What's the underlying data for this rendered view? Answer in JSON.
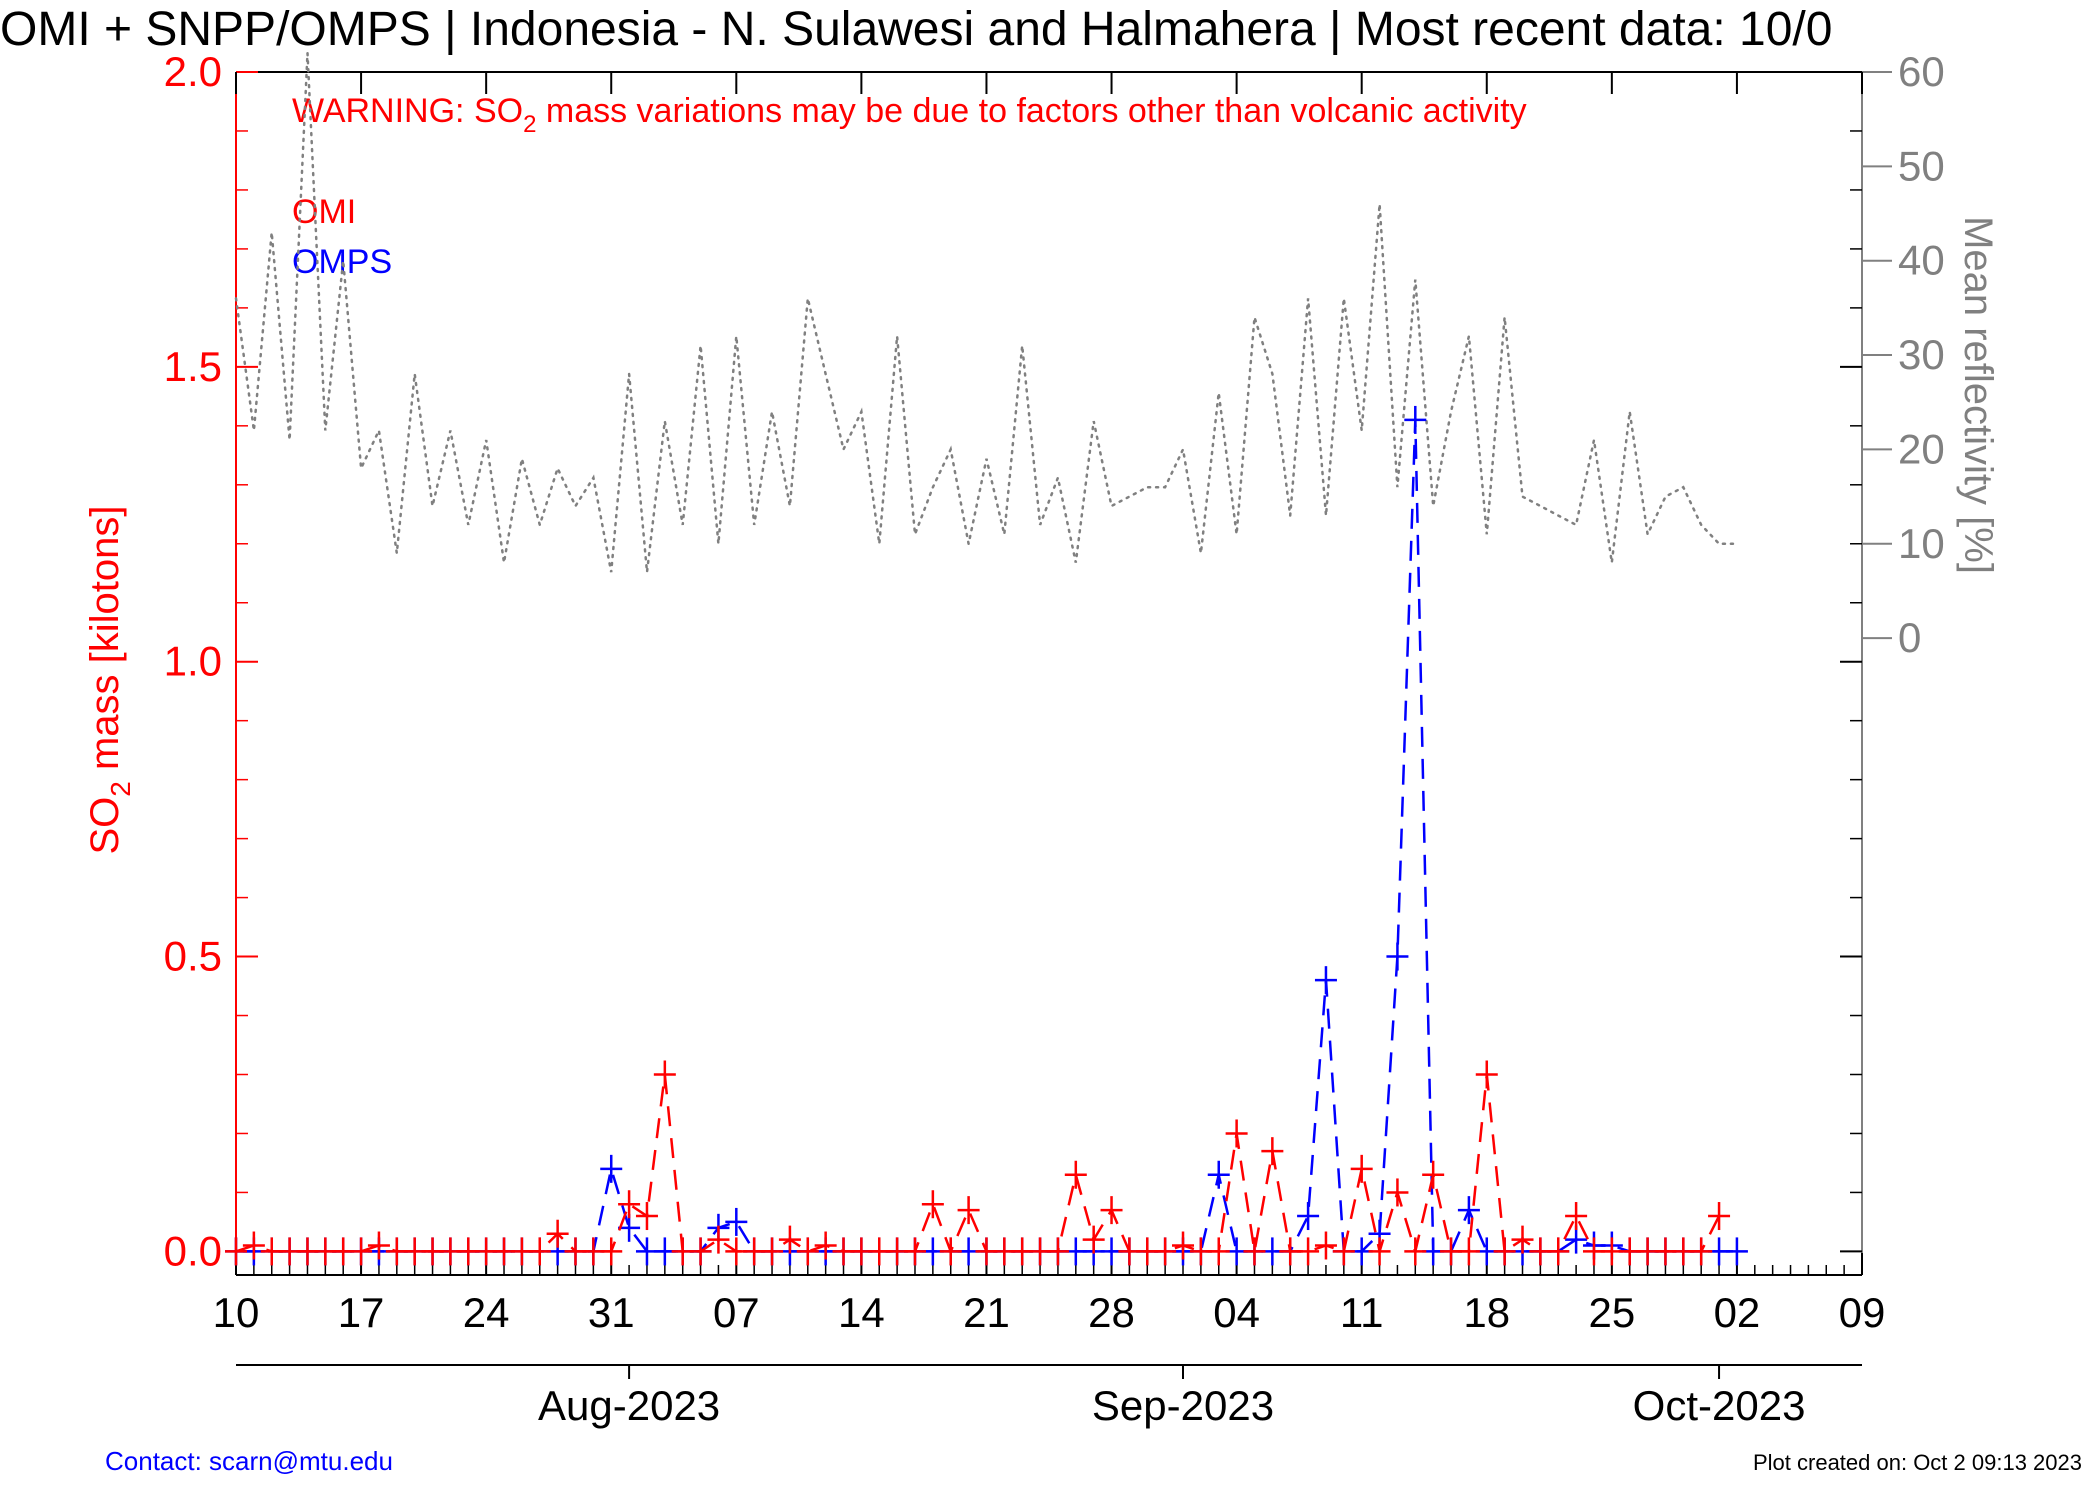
{
  "title": "OMI + SNPP/OMPS | Indonesia - N. Sulawesi and Halmahera | Most recent data: 10/0",
  "warning": {
    "prefix": "WARNING: SO",
    "subscript": "2",
    "suffix": " mass variations may be due to factors other than volcanic activity"
  },
  "footer": {
    "contact": "Contact: scarn@mtu.edu",
    "created": "Plot created on: Oct  2 09:13 2023"
  },
  "colors": {
    "omi": "#ff0000",
    "omps": "#0000ff",
    "reflectivity": "#808080",
    "axis": "#000000"
  },
  "chart_data": {
    "type": "line",
    "left_axis": {
      "label_prefix": "SO",
      "label_subscript": "2",
      "label_suffix": " mass [kilotons]",
      "ylim": [
        -0.04,
        2.0
      ],
      "ticks": [
        0.0,
        0.5,
        1.0,
        1.5,
        2.0
      ],
      "tick_labels": [
        "0.0",
        "0.5",
        "1.0",
        "1.5",
        "2.0"
      ]
    },
    "right_axis": {
      "label": "Mean reflectivity [%]",
      "ticks": [
        0,
        10,
        20,
        30,
        40,
        50,
        60
      ],
      "tick_labels": [
        "0",
        "10",
        "20",
        "30",
        "40",
        "50",
        "60"
      ],
      "ylim": [
        -67.5,
        60
      ]
    },
    "x_axis": {
      "start": "2023-07-10",
      "end": "2023-10-09",
      "ticks": [
        "2023-07-10",
        "2023-07-17",
        "2023-07-24",
        "2023-07-31",
        "2023-08-07",
        "2023-08-14",
        "2023-08-21",
        "2023-08-28",
        "2023-09-04",
        "2023-09-11",
        "2023-09-18",
        "2023-09-25",
        "2023-10-02",
        "2023-10-09"
      ],
      "tick_labels": [
        "10",
        "17",
        "24",
        "31",
        "07",
        "14",
        "21",
        "28",
        "04",
        "11",
        "18",
        "25",
        "02",
        "09"
      ],
      "months": [
        {
          "date": "2023-08-01",
          "label": "Aug-2023"
        },
        {
          "date": "2023-09-01",
          "label": "Sep-2023"
        },
        {
          "date": "2023-10-01",
          "label": "Oct-2023"
        }
      ]
    },
    "series": [
      {
        "name": "OMI",
        "style": "dashed",
        "marker": "plus",
        "x": [
          "2023-07-10",
          "2023-07-11",
          "2023-07-12",
          "2023-07-13",
          "2023-07-14",
          "2023-07-15",
          "2023-07-16",
          "2023-07-17",
          "2023-07-18",
          "2023-07-19",
          "2023-07-20",
          "2023-07-21",
          "2023-07-22",
          "2023-07-23",
          "2023-07-24",
          "2023-07-25",
          "2023-07-26",
          "2023-07-27",
          "2023-07-28",
          "2023-07-29",
          "2023-07-30",
          "2023-07-31",
          "2023-08-01",
          "2023-08-02",
          "2023-08-03",
          "2023-08-04",
          "2023-08-05",
          "2023-08-06",
          "2023-08-07",
          "2023-08-08",
          "2023-08-09",
          "2023-08-10",
          "2023-08-11",
          "2023-08-12",
          "2023-08-13",
          "2023-08-14",
          "2023-08-15",
          "2023-08-16",
          "2023-08-17",
          "2023-08-18",
          "2023-08-19",
          "2023-08-20",
          "2023-08-21",
          "2023-08-22",
          "2023-08-23",
          "2023-08-24",
          "2023-08-25",
          "2023-08-26",
          "2023-08-27",
          "2023-08-28",
          "2023-08-29",
          "2023-08-30",
          "2023-08-31",
          "2023-09-01",
          "2023-09-02",
          "2023-09-03",
          "2023-09-04",
          "2023-09-05",
          "2023-09-06",
          "2023-09-07",
          "2023-09-08",
          "2023-09-09",
          "2023-09-10",
          "2023-09-11",
          "2023-09-12",
          "2023-09-13",
          "2023-09-14",
          "2023-09-15",
          "2023-09-16",
          "2023-09-17",
          "2023-09-18",
          "2023-09-19",
          "2023-09-20",
          "2023-09-21",
          "2023-09-22",
          "2023-09-23",
          "2023-09-24",
          "2023-09-25",
          "2023-09-26",
          "2023-09-27",
          "2023-09-28",
          "2023-09-29",
          "2023-09-30",
          "2023-10-01"
        ],
        "values": [
          0.0,
          0.01,
          0.0,
          0.0,
          0.0,
          0.0,
          0.0,
          0.0,
          0.01,
          0.0,
          0.0,
          0.0,
          0.0,
          0.0,
          0.0,
          0.0,
          0.0,
          0.0,
          0.03,
          0.0,
          0.0,
          0.0,
          0.08,
          0.06,
          0.3,
          0.0,
          0.0,
          0.02,
          0.0,
          0.0,
          0.0,
          0.02,
          0.0,
          0.01,
          0.0,
          0.0,
          0.0,
          0.0,
          0.0,
          0.08,
          0.0,
          0.07,
          0.0,
          0.0,
          0.0,
          0.0,
          0.0,
          0.13,
          0.02,
          0.07,
          0.0,
          0.0,
          0.0,
          0.01,
          0.0,
          0.0,
          0.2,
          0.0,
          0.17,
          0.0,
          0.0,
          0.01,
          0.0,
          0.14,
          0.0,
          0.1,
          0.0,
          0.13,
          0.0,
          0.0,
          0.3,
          0.0,
          0.02,
          0.0,
          0.0,
          0.06,
          0.0,
          0.0,
          0.0,
          0.0,
          0.0,
          0.0,
          0.0,
          0.06
        ]
      },
      {
        "name": "OMPS",
        "style": "dashed",
        "marker": "plus",
        "x": [
          "2023-07-10",
          "2023-07-11",
          "2023-07-12",
          "2023-07-13",
          "2023-07-14",
          "2023-07-15",
          "2023-07-16",
          "2023-07-17",
          "2023-07-18",
          "2023-07-19",
          "2023-07-20",
          "2023-07-21",
          "2023-07-22",
          "2023-07-23",
          "2023-07-24",
          "2023-07-25",
          "2023-07-26",
          "2023-07-27",
          "2023-07-28",
          "2023-07-29",
          "2023-07-30",
          "2023-07-31",
          "2023-08-01",
          "2023-08-02",
          "2023-08-03",
          "2023-08-04",
          "2023-08-05",
          "2023-08-06",
          "2023-08-07",
          "2023-08-08",
          "2023-08-09",
          "2023-08-10",
          "2023-08-11",
          "2023-08-12",
          "2023-08-13",
          "2023-08-14",
          "2023-08-15",
          "2023-08-16",
          "2023-08-17",
          "2023-08-18",
          "2023-08-19",
          "2023-08-20",
          "2023-08-21",
          "2023-08-22",
          "2023-08-23",
          "2023-08-24",
          "2023-08-25",
          "2023-08-26",
          "2023-08-27",
          "2023-08-28",
          "2023-08-29",
          "2023-08-30",
          "2023-08-31",
          "2023-09-01",
          "2023-09-02",
          "2023-09-03",
          "2023-09-04",
          "2023-09-05",
          "2023-09-06",
          "2023-09-07",
          "2023-09-08",
          "2023-09-09",
          "2023-09-10",
          "2023-09-11",
          "2023-09-12",
          "2023-09-13",
          "2023-09-14",
          "2023-09-15",
          "2023-09-16",
          "2023-09-17",
          "2023-09-18",
          "2023-09-19",
          "2023-09-20",
          "2023-09-21",
          "2023-09-22",
          "2023-09-23",
          "2023-09-24",
          "2023-09-25",
          "2023-09-26",
          "2023-09-27",
          "2023-09-28",
          "2023-09-29",
          "2023-09-30",
          "2023-10-01",
          "2023-10-02"
        ],
        "values": [
          0.0,
          0.0,
          0.0,
          0.0,
          0.0,
          0.0,
          0.0,
          0.0,
          0.0,
          0.0,
          0.0,
          0.0,
          0.0,
          0.0,
          0.0,
          0.0,
          0.0,
          0.0,
          0.0,
          0.0,
          0.0,
          0.14,
          0.04,
          0.0,
          0.0,
          0.0,
          0.0,
          0.04,
          0.05,
          0.0,
          0.0,
          0.0,
          0.0,
          0.0,
          0.0,
          0.0,
          0.0,
          0.0,
          0.0,
          0.0,
          0.0,
          0.0,
          0.0,
          0.0,
          0.0,
          0.0,
          0.0,
          0.0,
          0.0,
          0.0,
          0.0,
          0.0,
          0.0,
          0.0,
          0.0,
          0.13,
          0.0,
          0.0,
          0.0,
          0.0,
          0.06,
          0.46,
          0.0,
          0.0,
          0.03,
          0.5,
          1.41,
          0.0,
          0.0,
          0.07,
          0.0,
          0.0,
          0.0,
          0.0,
          0.0,
          0.02,
          0.01,
          0.01,
          0.0,
          0.0,
          0.0,
          0.0,
          0.0,
          0.0,
          0.0
        ]
      },
      {
        "name": "Mean reflectivity",
        "style": "dotted",
        "axis": "right",
        "x": [
          "2023-07-10",
          "2023-07-11",
          "2023-07-12",
          "2023-07-13",
          "2023-07-14",
          "2023-07-15",
          "2023-07-16",
          "2023-07-17",
          "2023-07-18",
          "2023-07-19",
          "2023-07-20",
          "2023-07-21",
          "2023-07-22",
          "2023-07-23",
          "2023-07-24",
          "2023-07-25",
          "2023-07-26",
          "2023-07-27",
          "2023-07-28",
          "2023-07-29",
          "2023-07-30",
          "2023-07-31",
          "2023-08-01",
          "2023-08-02",
          "2023-08-03",
          "2023-08-04",
          "2023-08-05",
          "2023-08-06",
          "2023-08-07",
          "2023-08-08",
          "2023-08-09",
          "2023-08-10",
          "2023-08-11",
          "2023-08-12",
          "2023-08-13",
          "2023-08-14",
          "2023-08-15",
          "2023-08-16",
          "2023-08-17",
          "2023-08-18",
          "2023-08-19",
          "2023-08-20",
          "2023-08-21",
          "2023-08-22",
          "2023-08-23",
          "2023-08-24",
          "2023-08-25",
          "2023-08-26",
          "2023-08-27",
          "2023-08-28",
          "2023-08-29",
          "2023-08-30",
          "2023-08-31",
          "2023-09-01",
          "2023-09-02",
          "2023-09-03",
          "2023-09-04",
          "2023-09-05",
          "2023-09-06",
          "2023-09-07",
          "2023-09-08",
          "2023-09-09",
          "2023-09-10",
          "2023-09-11",
          "2023-09-12",
          "2023-09-13",
          "2023-09-14",
          "2023-09-15",
          "2023-09-16",
          "2023-09-17",
          "2023-09-18",
          "2023-09-19",
          "2023-09-20",
          "2023-09-21",
          "2023-09-22",
          "2023-09-23",
          "2023-09-24",
          "2023-09-25",
          "2023-09-26",
          "2023-09-27",
          "2023-09-28",
          "2023-09-29",
          "2023-09-30",
          "2023-10-01",
          "2023-10-02"
        ],
        "values": [
          36,
          22,
          43,
          21,
          62,
          22,
          40,
          18,
          22,
          9,
          28,
          14,
          22,
          12,
          21,
          8,
          19,
          12,
          18,
          14,
          17,
          7,
          28,
          7,
          23,
          12,
          31,
          10,
          32,
          12,
          24,
          14,
          36,
          28,
          20,
          24,
          10,
          32,
          11,
          16,
          20,
          10,
          19,
          11,
          31,
          12,
          17,
          8,
          23,
          14,
          15,
          16,
          16,
          20,
          9,
          26,
          11,
          34,
          28,
          13,
          36,
          13,
          36,
          22,
          46,
          16,
          38,
          14,
          24,
          32,
          11,
          34,
          15,
          14,
          13,
          12,
          21,
          8,
          24,
          11,
          15,
          16,
          12,
          10,
          10
        ]
      }
    ],
    "legend": [
      "OMI",
      "OMPS"
    ],
    "legend_position": "top-left",
    "grid": false
  }
}
